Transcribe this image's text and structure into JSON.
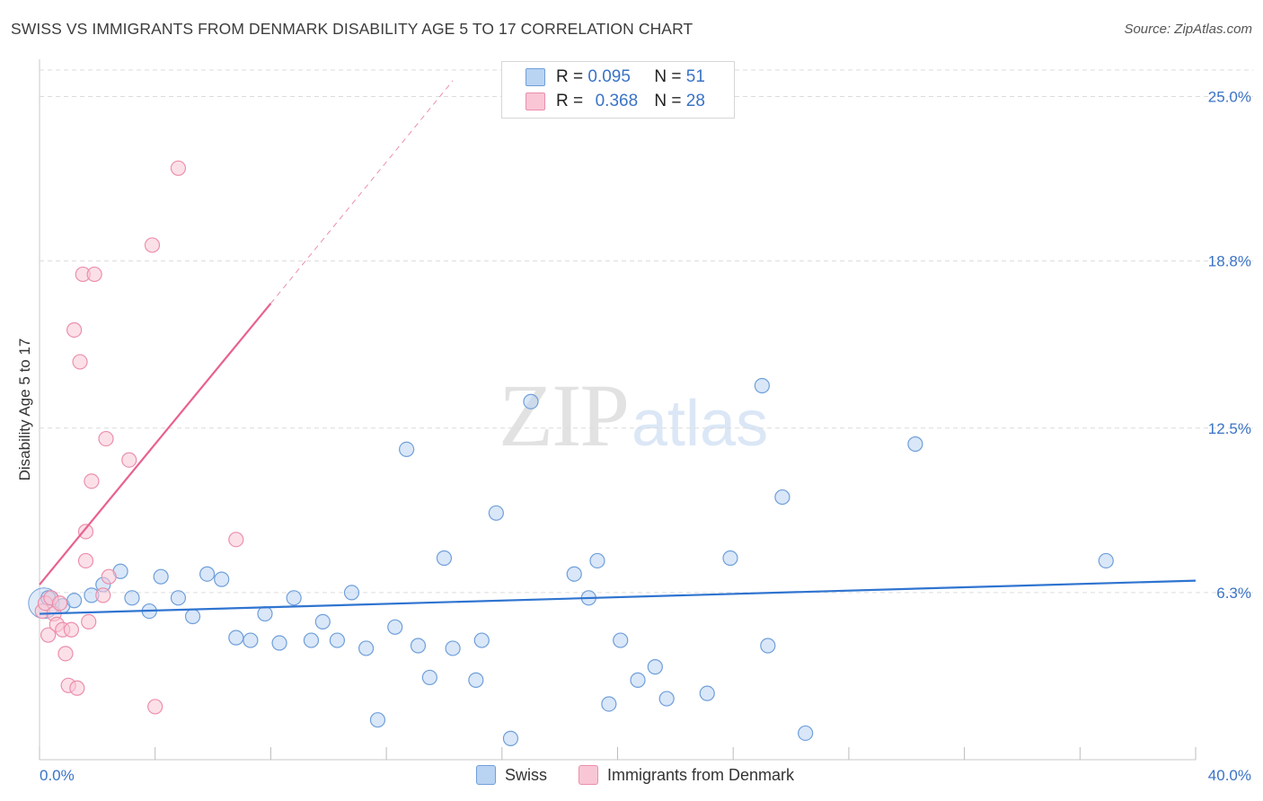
{
  "title": "SWISS VS IMMIGRANTS FROM DENMARK DISABILITY AGE 5 TO 17 CORRELATION CHART",
  "source": "Source: ZipAtlas.com",
  "watermark": {
    "zip": "ZIP",
    "atlas": "atlas"
  },
  "legend_box": {
    "rows": [
      {
        "r_label": "R =",
        "r_value": "0.095",
        "n_label": "N =",
        "n_value": "51"
      },
      {
        "r_label": "R =",
        "r_value": "0.368",
        "n_label": "N =",
        "n_value": "28"
      }
    ]
  },
  "colors": {
    "swiss_fill": "#b9d3f2",
    "swiss_stroke": "#6f9fda",
    "swiss_line": "#2f74d0",
    "denmark_fill": "#f9c6d6",
    "denmark_stroke": "#ec8fac",
    "denmark_line": "#e8628e",
    "axis_label": "#3a73c6",
    "grid": "#dcdcdc"
  },
  "chart_data": {
    "type": "scatter",
    "title": "SWISS VS IMMIGRANTS FROM DENMARK DISABILITY AGE 5 TO 17 CORRELATION CHART",
    "xlabel": "",
    "ylabel": "Disability Age 5 to 17",
    "xlim": [
      0,
      40
    ],
    "ylim": [
      0,
      26
    ],
    "x_tick_labels": [
      "0.0%",
      "40.0%"
    ],
    "y_ticks": [
      6.3,
      12.5,
      18.8,
      25.0
    ],
    "y_tick_labels": [
      "6.3%",
      "12.5%",
      "18.8%",
      "25.0%"
    ],
    "grid": true,
    "legend_position": "bottom",
    "series": [
      {
        "name": "Swiss",
        "r": 0.095,
        "n": 51,
        "trend": {
          "x": [
            0,
            40
          ],
          "y": [
            5.5,
            6.75
          ]
        },
        "points": [
          [
            0.3,
            6.1
          ],
          [
            0.8,
            5.8
          ],
          [
            1.2,
            6.0
          ],
          [
            1.8,
            6.2
          ],
          [
            2.2,
            6.6
          ],
          [
            2.8,
            7.1
          ],
          [
            3.2,
            6.1
          ],
          [
            3.8,
            5.6
          ],
          [
            4.2,
            6.9
          ],
          [
            4.8,
            6.1
          ],
          [
            5.3,
            5.4
          ],
          [
            5.8,
            7.0
          ],
          [
            6.3,
            6.8
          ],
          [
            6.8,
            4.6
          ],
          [
            7.3,
            4.5
          ],
          [
            7.8,
            5.5
          ],
          [
            8.3,
            4.4
          ],
          [
            8.8,
            6.1
          ],
          [
            9.4,
            4.5
          ],
          [
            9.8,
            5.2
          ],
          [
            10.3,
            4.5
          ],
          [
            10.8,
            6.3
          ],
          [
            11.3,
            4.2
          ],
          [
            12.3,
            5.0
          ],
          [
            12.7,
            11.7
          ],
          [
            13.1,
            4.3
          ],
          [
            13.5,
            3.1
          ],
          [
            14.0,
            7.6
          ],
          [
            14.3,
            4.2
          ],
          [
            15.1,
            3.0
          ],
          [
            15.3,
            4.5
          ],
          [
            15.8,
            9.3
          ],
          [
            16.3,
            0.8
          ],
          [
            17.0,
            13.5
          ],
          [
            18.5,
            7.0
          ],
          [
            19.0,
            6.1
          ],
          [
            19.3,
            7.5
          ],
          [
            19.7,
            2.1
          ],
          [
            20.1,
            4.5
          ],
          [
            20.7,
            3.0
          ],
          [
            21.3,
            3.5
          ],
          [
            21.7,
            2.3
          ],
          [
            23.1,
            2.5
          ],
          [
            23.9,
            7.6
          ],
          [
            25.0,
            14.1
          ],
          [
            25.2,
            4.3
          ],
          [
            25.7,
            9.9
          ],
          [
            26.5,
            1.0
          ],
          [
            30.3,
            11.9
          ],
          [
            36.9,
            7.5
          ],
          [
            11.7,
            1.5
          ]
        ]
      },
      {
        "name": "Immigrants from Denmark",
        "r": 0.368,
        "n": 28,
        "trend": {
          "x": [
            0,
            8
          ],
          "y": [
            6.6,
            17.2
          ]
        },
        "trend_extension": {
          "x": [
            8,
            14.3
          ],
          "y": [
            17.2,
            25.6
          ]
        },
        "points": [
          [
            0.1,
            5.6
          ],
          [
            0.2,
            5.9
          ],
          [
            0.3,
            4.7
          ],
          [
            0.4,
            6.1
          ],
          [
            0.5,
            5.5
          ],
          [
            0.6,
            5.1
          ],
          [
            0.7,
            5.9
          ],
          [
            0.8,
            4.9
          ],
          [
            0.9,
            4.0
          ],
          [
            1.0,
            2.8
          ],
          [
            1.1,
            4.9
          ],
          [
            1.2,
            16.2
          ],
          [
            1.3,
            2.7
          ],
          [
            1.4,
            15.0
          ],
          [
            1.5,
            18.3
          ],
          [
            1.6,
            7.5
          ],
          [
            1.7,
            5.2
          ],
          [
            1.8,
            10.5
          ],
          [
            1.9,
            18.3
          ],
          [
            2.2,
            6.2
          ],
          [
            2.3,
            12.1
          ],
          [
            2.4,
            6.9
          ],
          [
            3.1,
            11.3
          ],
          [
            3.9,
            19.4
          ],
          [
            4.0,
            2.0
          ],
          [
            4.8,
            22.3
          ],
          [
            6.8,
            8.3
          ],
          [
            1.6,
            8.6
          ]
        ]
      }
    ]
  },
  "bottom_legend": [
    {
      "label": "Swiss"
    },
    {
      "label": "Immigrants from Denmark"
    }
  ]
}
